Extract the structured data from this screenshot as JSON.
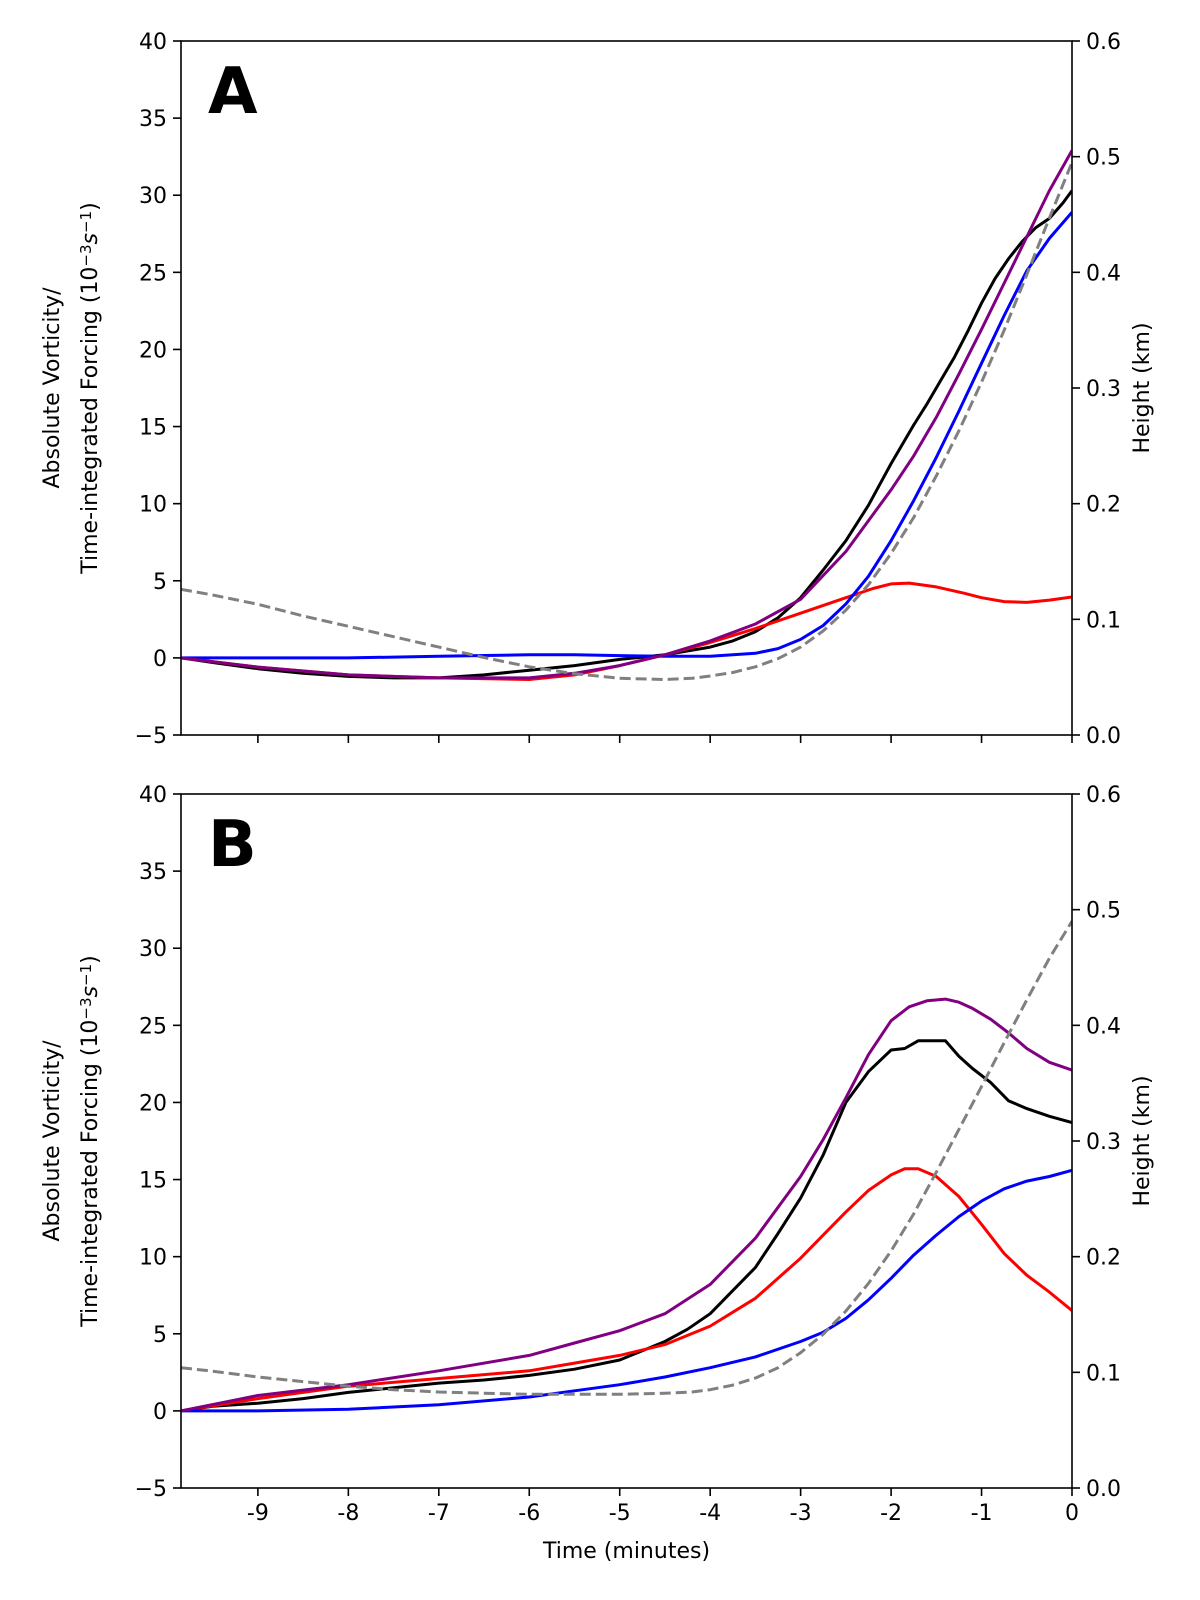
{
  "chart_data": [
    {
      "type": "line",
      "panel_label": "A",
      "xlabel": "",
      "ylabel_line1": "Absolute Vorticity/",
      "ylabel_line2": "Time-integrated Forcing (10",
      "ylabel_exp1": "−3",
      "ylabel_mid": "s",
      "ylabel_exp2": "−1",
      "ylabel_close": ")",
      "y2label": "Height (km)",
      "xlim": [
        -9.85,
        0
      ],
      "ylim": [
        -5,
        40
      ],
      "y2lim": [
        0.0,
        0.6
      ],
      "xticks": [
        -9,
        -8,
        -7,
        -6,
        -5,
        -4,
        -3,
        -2,
        -1,
        0
      ],
      "show_xtick_labels": false,
      "yticks": [
        -5,
        0,
        5,
        10,
        15,
        20,
        25,
        30,
        35,
        40
      ],
      "ytick_labels": [
        "−5",
        "0",
        "5",
        "10",
        "15",
        "20",
        "25",
        "30",
        "35",
        "40"
      ],
      "y2ticks": [
        0.0,
        0.1,
        0.2,
        0.3,
        0.4,
        0.5,
        0.6
      ],
      "y2tick_labels": [
        "0.0",
        "0.1",
        "0.2",
        "0.3",
        "0.4",
        "0.5",
        "0.6"
      ],
      "grid": false,
      "series": [
        {
          "color": "#000000",
          "style": "solid",
          "axis": "left",
          "x": [
            -9.85,
            -9.5,
            -9,
            -8.5,
            -8,
            -7.5,
            -7,
            -6.5,
            -6,
            -5.5,
            -5,
            -4.5,
            -4,
            -3.75,
            -3.5,
            -3.25,
            -3,
            -2.75,
            -2.5,
            -2.25,
            -2,
            -1.75,
            -1.6,
            -1.45,
            -1.3,
            -1.15,
            -1,
            -0.85,
            -0.7,
            -0.55,
            -0.4,
            -0.25,
            -0.1,
            0
          ],
          "y": [
            0,
            -0.3,
            -0.7,
            -1.0,
            -1.2,
            -1.3,
            -1.3,
            -1.1,
            -0.8,
            -0.5,
            -0.1,
            0.2,
            0.7,
            1.1,
            1.7,
            2.6,
            3.9,
            5.7,
            7.6,
            9.9,
            12.6,
            15.1,
            16.5,
            18.0,
            19.5,
            21.2,
            23.0,
            24.6,
            25.9,
            27.0,
            27.9,
            28.5,
            29.5,
            30.3
          ]
        },
        {
          "color": "#ff0000",
          "style": "solid",
          "axis": "left",
          "x": [
            -9.85,
            -9,
            -8,
            -7,
            -6,
            -5.5,
            -5,
            -4.5,
            -4,
            -3.5,
            -3,
            -2.5,
            -2.2,
            -2,
            -1.8,
            -1.5,
            -1.2,
            -1,
            -0.75,
            -0.5,
            -0.25,
            0
          ],
          "y": [
            0,
            -0.6,
            -1.1,
            -1.3,
            -1.4,
            -1.1,
            -0.5,
            0.2,
            1.0,
            1.9,
            2.9,
            3.9,
            4.5,
            4.8,
            4.85,
            4.6,
            4.2,
            3.9,
            3.65,
            3.6,
            3.75,
            3.95
          ]
        },
        {
          "color": "#0000ff",
          "style": "solid",
          "axis": "left",
          "x": [
            -9.85,
            -9,
            -8,
            -7,
            -6,
            -5.5,
            -5,
            -4.5,
            -4,
            -3.5,
            -3.25,
            -3,
            -2.75,
            -2.5,
            -2.25,
            -2,
            -1.75,
            -1.5,
            -1.25,
            -1,
            -0.75,
            -0.5,
            -0.25,
            0
          ],
          "y": [
            0,
            0,
            0,
            0.1,
            0.2,
            0.2,
            0.15,
            0.1,
            0.1,
            0.3,
            0.6,
            1.2,
            2.1,
            3.5,
            5.3,
            7.6,
            10.2,
            13.0,
            16.0,
            19.1,
            22.2,
            25.1,
            27.2,
            28.9
          ]
        },
        {
          "color": "#800080",
          "style": "solid",
          "axis": "left",
          "x": [
            -9.85,
            -9,
            -8,
            -7,
            -6,
            -5.5,
            -5,
            -4.5,
            -4,
            -3.5,
            -3,
            -2.5,
            -2,
            -1.75,
            -1.5,
            -1.25,
            -1,
            -0.75,
            -0.5,
            -0.25,
            0
          ],
          "y": [
            0,
            -0.6,
            -1.1,
            -1.3,
            -1.3,
            -1.0,
            -0.5,
            0.2,
            1.1,
            2.2,
            3.8,
            6.9,
            10.9,
            13.1,
            15.6,
            18.4,
            21.3,
            24.3,
            27.3,
            30.3,
            32.9
          ]
        },
        {
          "color": "#808080",
          "style": "dashed",
          "axis": "right",
          "x": [
            -9.85,
            -9.5,
            -9,
            -8.5,
            -8,
            -7.5,
            -7,
            -6.5,
            -6,
            -5.5,
            -5,
            -4.5,
            -4.2,
            -4,
            -3.75,
            -3.5,
            -3.25,
            -3,
            -2.75,
            -2.5,
            -2.25,
            -2,
            -1.75,
            -1.5,
            -1.25,
            -1,
            -0.75,
            -0.5,
            -0.25,
            0
          ],
          "y": [
            0.126,
            0.121,
            0.113,
            0.103,
            0.094,
            0.085,
            0.076,
            0.067,
            0.059,
            0.053,
            0.049,
            0.048,
            0.049,
            0.051,
            0.054,
            0.059,
            0.066,
            0.076,
            0.09,
            0.108,
            0.13,
            0.157,
            0.188,
            0.224,
            0.263,
            0.305,
            0.35,
            0.398,
            0.447,
            0.495
          ]
        }
      ]
    },
    {
      "type": "line",
      "panel_label": "B",
      "xlabel": "Time (minutes)",
      "ylabel_line1": "Absolute Vorticity/",
      "ylabel_line2": "Time-integrated Forcing (10",
      "ylabel_exp1": "−3",
      "ylabel_mid": "s",
      "ylabel_exp2": "−1",
      "ylabel_close": ")",
      "y2label": "Height (km)",
      "xlim": [
        -9.85,
        0
      ],
      "ylim": [
        -5,
        40
      ],
      "y2lim": [
        0.0,
        0.6
      ],
      "xticks": [
        -9,
        -8,
        -7,
        -6,
        -5,
        -4,
        -3,
        -2,
        -1,
        0
      ],
      "xtick_labels": [
        "-9",
        "-8",
        "-7",
        "-6",
        "-5",
        "-4",
        "-3",
        "-2",
        "-1",
        "0"
      ],
      "show_xtick_labels": true,
      "yticks": [
        -5,
        0,
        5,
        10,
        15,
        20,
        25,
        30,
        35,
        40
      ],
      "ytick_labels": [
        "−5",
        "0",
        "5",
        "10",
        "15",
        "20",
        "25",
        "30",
        "35",
        "40"
      ],
      "y2ticks": [
        0.0,
        0.1,
        0.2,
        0.3,
        0.4,
        0.5,
        0.6
      ],
      "y2tick_labels": [
        "0.0",
        "0.1",
        "0.2",
        "0.3",
        "0.4",
        "0.5",
        "0.6"
      ],
      "grid": false,
      "series": [
        {
          "color": "#000000",
          "style": "solid",
          "axis": "left",
          "x": [
            -9.85,
            -9.5,
            -9,
            -8.5,
            -8,
            -7.5,
            -7,
            -6.5,
            -6,
            -5.5,
            -5,
            -4.75,
            -4.5,
            -4.25,
            -4,
            -3.75,
            -3.5,
            -3.25,
            -3,
            -2.75,
            -2.5,
            -2.25,
            -2,
            -1.85,
            -1.7,
            -1.55,
            -1.4,
            -1.25,
            -1.1,
            -0.9,
            -0.7,
            -0.5,
            -0.25,
            0
          ],
          "y": [
            0,
            0.3,
            0.5,
            0.8,
            1.2,
            1.5,
            1.8,
            2.0,
            2.3,
            2.7,
            3.3,
            3.9,
            4.5,
            5.3,
            6.3,
            7.8,
            9.3,
            11.5,
            13.8,
            16.6,
            20.0,
            22.0,
            23.4,
            23.5,
            24.0,
            24.0,
            24.0,
            23.0,
            22.2,
            21.3,
            20.1,
            19.6,
            19.1,
            18.7
          ]
        },
        {
          "color": "#ff0000",
          "style": "solid",
          "axis": "left",
          "x": [
            -9.85,
            -9,
            -8,
            -7,
            -6,
            -5.5,
            -5,
            -4.5,
            -4,
            -3.5,
            -3,
            -2.75,
            -2.5,
            -2.25,
            -2,
            -1.85,
            -1.7,
            -1.5,
            -1.25,
            -1,
            -0.75,
            -0.5,
            -0.25,
            0
          ],
          "y": [
            0,
            0.8,
            1.6,
            2.1,
            2.6,
            3.1,
            3.6,
            4.3,
            5.5,
            7.3,
            9.9,
            11.4,
            12.9,
            14.3,
            15.3,
            15.7,
            15.7,
            15.2,
            13.9,
            12.1,
            10.2,
            8.8,
            7.7,
            6.5
          ]
        },
        {
          "color": "#0000ff",
          "style": "solid",
          "axis": "left",
          "x": [
            -9.85,
            -9,
            -8,
            -7,
            -6,
            -5.5,
            -5,
            -4.5,
            -4,
            -3.5,
            -3,
            -2.75,
            -2.5,
            -2.25,
            -2,
            -1.75,
            -1.5,
            -1.25,
            -1,
            -0.75,
            -0.5,
            -0.25,
            0
          ],
          "y": [
            0,
            0,
            0.1,
            0.4,
            0.9,
            1.3,
            1.7,
            2.2,
            2.8,
            3.5,
            4.5,
            5.1,
            6.0,
            7.2,
            8.6,
            10.1,
            11.4,
            12.6,
            13.6,
            14.4,
            14.9,
            15.2,
            15.6
          ]
        },
        {
          "color": "#800080",
          "style": "solid",
          "axis": "left",
          "x": [
            -9.85,
            -9,
            -8,
            -7,
            -6,
            -5.5,
            -5,
            -4.5,
            -4,
            -3.5,
            -3,
            -2.75,
            -2.5,
            -2.25,
            -2,
            -1.8,
            -1.6,
            -1.4,
            -1.25,
            -1.1,
            -0.9,
            -0.7,
            -0.5,
            -0.25,
            0
          ],
          "y": [
            0,
            1.0,
            1.7,
            2.6,
            3.6,
            4.4,
            5.2,
            6.3,
            8.2,
            11.2,
            15.2,
            17.6,
            20.3,
            23.1,
            25.3,
            26.2,
            26.6,
            26.7,
            26.5,
            26.1,
            25.4,
            24.5,
            23.5,
            22.6,
            22.1
          ]
        },
        {
          "color": "#808080",
          "style": "dashed",
          "axis": "right",
          "x": [
            -9.85,
            -9.5,
            -9,
            -8.5,
            -8,
            -7.5,
            -7,
            -6.5,
            -6,
            -5.5,
            -5,
            -4.5,
            -4.2,
            -4,
            -3.75,
            -3.5,
            -3.25,
            -3,
            -2.75,
            -2.5,
            -2.25,
            -2,
            -1.75,
            -1.5,
            -1.25,
            -1,
            -0.75,
            -0.5,
            -0.25,
            0
          ],
          "y": [
            0.104,
            0.101,
            0.096,
            0.092,
            0.088,
            0.085,
            0.083,
            0.082,
            0.081,
            0.081,
            0.081,
            0.082,
            0.083,
            0.085,
            0.089,
            0.095,
            0.104,
            0.117,
            0.133,
            0.153,
            0.177,
            0.205,
            0.237,
            0.273,
            0.31,
            0.347,
            0.385,
            0.422,
            0.458,
            0.49
          ]
        }
      ]
    }
  ]
}
